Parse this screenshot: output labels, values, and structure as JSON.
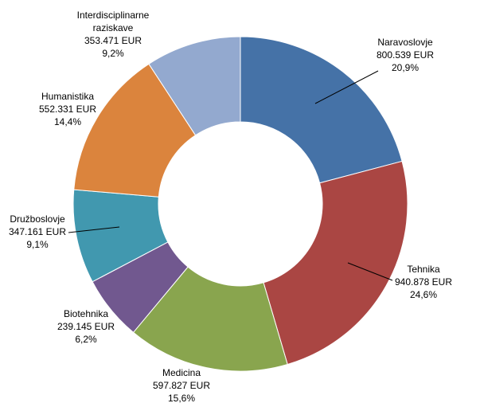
{
  "chart_data": {
    "type": "pie",
    "donut": true,
    "legend": "none",
    "slices": [
      {
        "label": "Naravoslovje",
        "amount": "800.539 EUR",
        "percent_text": "20,9%",
        "value": 800539,
        "percent": 20.9,
        "color": "#4572a7"
      },
      {
        "label": "Tehnika",
        "amount": "940.878 EUR",
        "percent_text": "24,6%",
        "value": 940878,
        "percent": 24.6,
        "color": "#aa4643"
      },
      {
        "label": "Medicina",
        "amount": "597.827 EUR",
        "percent_text": "15,6%",
        "value": 597827,
        "percent": 15.6,
        "color": "#89a54e"
      },
      {
        "label": "Biotehnika",
        "amount": "239.145 EUR",
        "percent_text": "6,2%",
        "value": 239145,
        "percent": 6.2,
        "color": "#71588f"
      },
      {
        "label": "Družboslovje",
        "amount": "347.161 EUR",
        "percent_text": "9,1%",
        "value": 347161,
        "percent": 9.1,
        "color": "#4198af"
      },
      {
        "label": "Humanistika",
        "amount": "552.331 EUR",
        "percent_text": "14,4%",
        "value": 552331,
        "percent": 14.4,
        "color": "#db843d"
      },
      {
        "label": "Interdisciplinarne raziskave",
        "label_lines": [
          "Interdisciplinarne",
          "raziskave"
        ],
        "amount": "353.471 EUR",
        "percent_text": "9,2%",
        "value": 353471,
        "percent": 9.2,
        "color": "#93a9cf"
      }
    ]
  }
}
